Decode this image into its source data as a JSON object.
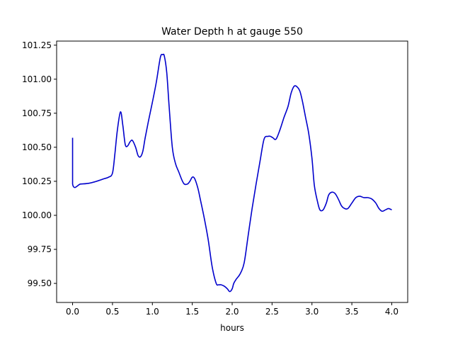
{
  "chart_data": {
    "type": "line",
    "title": "Water Depth h at gauge 550",
    "xlabel": "hours",
    "ylabel": "",
    "xlim": [
      -0.2,
      4.2
    ],
    "ylim": [
      99.36,
      101.28
    ],
    "x_ticks": [
      0.0,
      0.5,
      1.0,
      1.5,
      2.0,
      2.5,
      3.0,
      3.5,
      4.0
    ],
    "x_tick_labels": [
      "0.0",
      "0.5",
      "1.0",
      "1.5",
      "2.0",
      "2.5",
      "3.0",
      "3.5",
      "4.0"
    ],
    "y_ticks": [
      99.5,
      99.75,
      100.0,
      100.25,
      100.5,
      100.75,
      101.0,
      101.25
    ],
    "y_tick_labels": [
      "99.50",
      "99.75",
      "100.00",
      "100.25",
      "100.50",
      "100.75",
      "101.00",
      "101.25"
    ],
    "grid": false,
    "series": [
      {
        "name": "",
        "color": "#0000cc",
        "x": [
          0.0,
          0.0,
          0.1,
          0.2,
          0.3,
          0.4,
          0.45,
          0.5,
          0.53,
          0.56,
          0.6,
          0.63,
          0.66,
          0.69,
          0.72,
          0.75,
          0.79,
          0.82,
          0.85,
          0.88,
          0.91,
          0.95,
          1.0,
          1.05,
          1.1,
          1.13,
          1.15,
          1.18,
          1.21,
          1.25,
          1.29,
          1.33,
          1.37,
          1.4,
          1.44,
          1.47,
          1.5,
          1.53,
          1.57,
          1.6,
          1.65,
          1.7,
          1.75,
          1.8,
          1.83,
          1.86,
          1.9,
          1.94,
          1.97,
          2.0,
          2.02,
          2.05,
          2.1,
          2.15,
          2.2,
          2.25,
          2.3,
          2.35,
          2.4,
          2.45,
          2.48,
          2.51,
          2.55,
          2.6,
          2.65,
          2.7,
          2.74,
          2.78,
          2.82,
          2.85,
          2.88,
          2.92,
          2.96,
          3.0,
          3.03,
          3.07,
          3.1,
          3.14,
          3.18,
          3.21,
          3.25,
          3.29,
          3.33,
          3.37,
          3.41,
          3.45,
          3.5,
          3.55,
          3.6,
          3.65,
          3.7,
          3.75,
          3.8,
          3.84,
          3.88,
          3.92,
          3.96,
          4.0
        ],
        "y": [
          100.57,
          100.23,
          100.23,
          100.235,
          100.25,
          100.27,
          100.28,
          100.31,
          100.45,
          100.62,
          100.76,
          100.66,
          100.52,
          100.51,
          100.54,
          100.55,
          100.5,
          100.44,
          100.43,
          100.47,
          100.57,
          100.69,
          100.83,
          100.98,
          101.16,
          101.18,
          101.17,
          101.05,
          100.8,
          100.5,
          100.38,
          100.32,
          100.26,
          100.23,
          100.23,
          100.25,
          100.28,
          100.27,
          100.2,
          100.12,
          99.98,
          99.82,
          99.62,
          99.5,
          99.49,
          99.49,
          99.48,
          99.46,
          99.44,
          99.46,
          99.5,
          99.53,
          99.57,
          99.65,
          99.85,
          100.05,
          100.23,
          100.4,
          100.56,
          100.58,
          100.58,
          100.57,
          100.56,
          100.63,
          100.72,
          100.8,
          100.9,
          100.95,
          100.94,
          100.91,
          100.84,
          100.72,
          100.6,
          100.42,
          100.22,
          100.1,
          100.04,
          100.04,
          100.09,
          100.15,
          100.17,
          100.16,
          100.12,
          100.07,
          100.05,
          100.05,
          100.09,
          100.13,
          100.14,
          100.13,
          100.13,
          100.12,
          100.09,
          100.05,
          100.03,
          100.04,
          100.05,
          100.04
        ]
      }
    ]
  }
}
